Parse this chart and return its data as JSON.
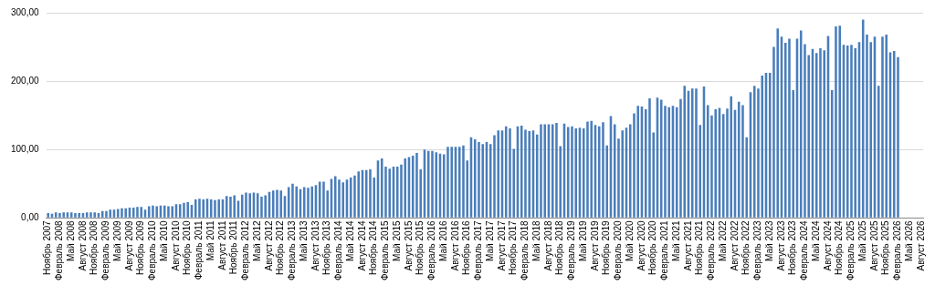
{
  "chart_data": {
    "type": "bar",
    "color": "#4a7ebb",
    "grid": "y",
    "ylim": [
      0,
      300
    ],
    "yticks": [
      {
        "value": 0,
        "label": "0,00"
      },
      {
        "value": 100,
        "label": "100,00"
      },
      {
        "value": 200,
        "label": "200,00"
      },
      {
        "value": 300,
        "label": "300,00"
      }
    ],
    "categories": [
      "Ноябрь 2007",
      null,
      null,
      "Февраль 2008",
      null,
      null,
      "Май 2008",
      null,
      null,
      "Август 2008",
      null,
      null,
      "Ноябрь 2008",
      null,
      null,
      "Февраль 2009",
      null,
      null,
      "Май 2009",
      null,
      null,
      "Август 2009",
      null,
      null,
      "Ноябрь 2009",
      null,
      null,
      "Февраль 2010",
      null,
      null,
      "Май 2010",
      null,
      null,
      "Август 2010",
      null,
      null,
      "Ноябрь 2010",
      null,
      null,
      "Февраль 2011",
      null,
      null,
      "Май 2011",
      null,
      null,
      "Август 2011",
      null,
      null,
      "Ноябрь 2011",
      null,
      null,
      "Февраль 2012",
      null,
      null,
      "Май 2012",
      null,
      null,
      "Август 2012",
      null,
      null,
      "Ноябрь 2012",
      null,
      null,
      "Февраль 2013",
      null,
      null,
      "Май 2013",
      null,
      null,
      "Август 2013",
      null,
      null,
      "Ноябрь 2013",
      null,
      null,
      "Февраль 2014",
      null,
      null,
      "Май 2014",
      null,
      null,
      "Август 2014",
      null,
      null,
      "Ноябрь 2014",
      null,
      null,
      "Февраль 2015",
      null,
      null,
      "Май 2015",
      null,
      null,
      "Август 2015",
      null,
      null,
      "Ноябрь 2015",
      null,
      null,
      "Февраль 2016",
      null,
      null,
      "Май 2016",
      null,
      null,
      "Август 2016",
      null,
      null,
      "Ноябрь 2016",
      null,
      null,
      "Февраль 2017",
      null,
      null,
      "Май 2017",
      null,
      null,
      "Август 2017",
      null,
      null,
      "Ноябрь 2017",
      null,
      null,
      "Февраль 2018",
      null,
      null,
      "Май 2018",
      null,
      null,
      "Август 2018",
      null,
      null,
      "Ноябрь 2018",
      null,
      null,
      "Февраль 2019",
      null,
      null,
      "Май 2019",
      null,
      null,
      "Август 2019",
      null,
      null,
      "Ноябрь 2019",
      null,
      null,
      "Февраль 2020",
      null,
      null,
      "Май 2020",
      null,
      null,
      "Август 2020",
      null,
      null,
      "Ноябрь 2020",
      null,
      null,
      "Февраль 2021",
      null,
      null,
      "Май 2021",
      null,
      null,
      "Август 2021",
      null,
      null,
      "Ноябрь 2021",
      null,
      null,
      "Февраль 2022",
      null,
      null,
      "Май 2022",
      null,
      null,
      "Август 2022",
      null,
      null,
      "Ноябрь 2022",
      null,
      null,
      "Февраль 2023",
      null,
      null,
      "Май 2023",
      null,
      null,
      "Август 2023",
      null,
      null,
      "Ноябрь 2023",
      null,
      null,
      "Февраль 2024",
      null,
      null,
      "Май 2024",
      null,
      null,
      "Август 2024",
      null,
      null,
      "Ноябрь 2024",
      null,
      null,
      "Февраль 2025",
      null,
      null,
      "Май 2025",
      null,
      null,
      "Август 2025",
      null,
      null,
      "Ноябрь 2025",
      null,
      null,
      "Февраль 2026",
      null,
      null,
      "Май 2026",
      null,
      null,
      "Август 2026"
    ],
    "values": [
      7,
      6,
      8,
      7,
      8,
      8,
      8,
      7,
      7,
      7,
      8,
      8,
      8,
      7,
      10,
      10,
      12,
      12,
      13,
      14,
      14,
      15,
      15,
      16,
      16,
      12,
      17,
      18,
      17,
      18,
      18,
      17,
      17,
      20,
      20,
      22,
      23,
      19,
      27,
      28,
      27,
      28,
      27,
      26,
      27,
      27,
      32,
      31,
      33,
      25,
      34,
      37,
      36,
      37,
      36,
      31,
      33,
      38,
      40,
      41,
      40,
      32,
      45,
      50,
      46,
      42,
      45,
      44,
      46,
      48,
      53,
      53,
      40,
      57,
      61,
      56,
      52,
      56,
      59,
      62,
      68,
      70,
      70,
      71,
      59,
      84,
      87,
      75,
      72,
      75,
      75,
      78,
      87,
      89,
      91,
      95,
      71,
      100,
      98,
      98,
      96,
      94,
      93,
      104,
      104,
      104,
      104,
      106,
      84,
      118,
      115,
      111,
      108,
      111,
      108,
      121,
      128,
      128,
      134,
      131,
      101,
      134,
      135,
      129,
      127,
      128,
      122,
      137,
      137,
      137,
      137,
      139,
      105,
      138,
      133,
      134,
      131,
      132,
      131,
      141,
      142,
      136,
      134,
      140,
      106,
      149,
      137,
      116,
      128,
      132,
      137,
      153,
      164,
      163,
      159,
      175,
      125,
      176,
      173,
      164,
      162,
      164,
      162,
      174,
      193,
      186,
      189,
      189,
      136,
      192,
      165,
      150,
      159,
      161,
      152,
      160,
      178,
      158,
      170,
      165,
      118,
      184,
      193,
      189,
      208,
      212,
      212,
      250,
      277,
      265,
      256,
      262,
      187,
      262,
      274,
      254,
      238,
      247,
      241,
      248,
      245,
      266,
      187,
      280,
      281,
      253,
      252,
      253,
      248,
      257,
      290,
      268,
      257,
      265,
      193,
      265,
      268,
      242,
      244,
      235,
      null,
      null,
      null,
      null,
      null,
      null
    ]
  }
}
